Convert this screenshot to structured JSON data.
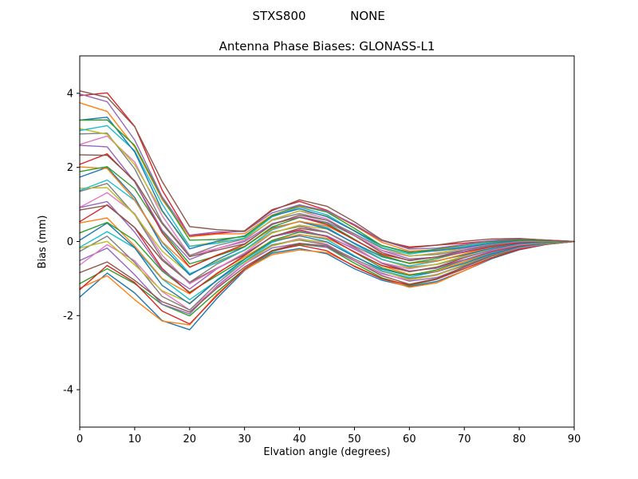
{
  "header": {
    "suptitle_left": "STXS800",
    "suptitle_right": "NONE"
  },
  "chart_data": {
    "type": "line",
    "title": "Antenna Phase Biases: GLONASS-L1",
    "xlabel": "Elvation angle (degrees)",
    "ylabel": "Bias (mm)",
    "xlim": [
      0,
      90
    ],
    "ylim": [
      -5,
      5
    ],
    "xticks": [
      0,
      10,
      20,
      30,
      40,
      50,
      60,
      70,
      80,
      90
    ],
    "yticks": [
      -4,
      -2,
      0,
      2,
      4
    ],
    "grid": false,
    "legend": "none",
    "x": [
      0,
      5,
      10,
      15,
      20,
      25,
      30,
      35,
      40,
      45,
      50,
      55,
      60,
      65,
      70,
      75,
      80,
      85,
      90
    ],
    "envelope_mean": [
      1.3,
      1.5,
      0.8,
      -0.3,
      -1.0,
      -0.6,
      -0.25,
      0.25,
      0.45,
      0.3,
      -0.1,
      -0.5,
      -0.7,
      -0.6,
      -0.4,
      -0.2,
      -0.07,
      -0.02,
      0.0
    ],
    "envelope_spread": [
      2.8,
      2.5,
      2.3,
      1.8,
      1.3,
      0.9,
      0.55,
      0.6,
      0.65,
      0.6,
      0.6,
      0.55,
      0.55,
      0.5,
      0.38,
      0.25,
      0.15,
      0.06,
      0.0
    ],
    "series_offsets": [
      -1.0,
      -0.943,
      -0.886,
      -0.829,
      -0.771,
      -0.714,
      -0.657,
      -0.6,
      -0.543,
      -0.486,
      -0.429,
      -0.371,
      -0.314,
      -0.257,
      -0.2,
      -0.143,
      -0.086,
      -0.029,
      0.029,
      0.086,
      0.143,
      0.2,
      0.257,
      0.314,
      0.371,
      0.429,
      0.486,
      0.543,
      0.6,
      0.657,
      0.714,
      0.771,
      0.829,
      0.886,
      0.943,
      1.0
    ],
    "n_series": 36,
    "palette": [
      "#1f77b4",
      "#ff7f0e",
      "#2ca02c",
      "#d62728",
      "#9467bd",
      "#8c564b",
      "#e377c2",
      "#7f7f7f",
      "#bcbd22",
      "#17becf"
    ],
    "axes_color": "#000000"
  }
}
